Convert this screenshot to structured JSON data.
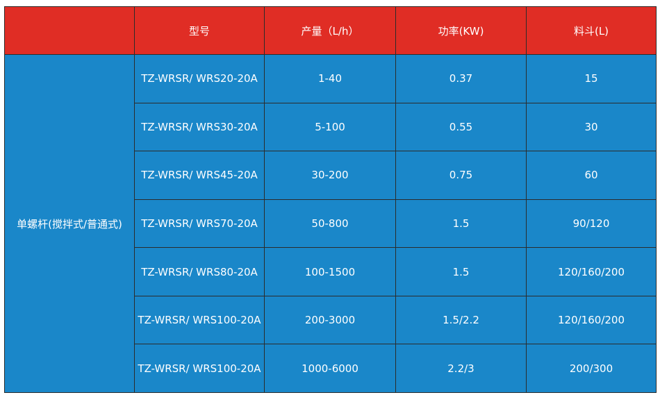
{
  "table": {
    "header": [
      "型号",
      "产量（L/h）",
      "功率(KW)",
      "料斗(L)"
    ],
    "group": "单螺杆(搅拌式/普通式)",
    "rows": [
      [
        "TZ-WRSR/ WRS20-20A",
        "1-40",
        "0.37",
        "15"
      ],
      [
        "TZ-WRSR/ WRS30-20A",
        "5-100",
        "0.55",
        "30"
      ],
      [
        "TZ-WRSR/ WRS45-20A",
        "30-200",
        "0.75",
        "60"
      ],
      [
        "TZ-WRSR/ WRS70-20A",
        "50-800",
        "1.5",
        "90/120"
      ],
      [
        "TZ-WRSR/ WRS80-20A",
        "100-1500",
        "1.5",
        "120/160/200"
      ],
      [
        "TZ-WRSR/ WRS100-20A",
        "200-3000",
        "1.5/2.2",
        "120/160/200"
      ],
      [
        "TZ-WRSR/ WRS100-20A",
        "1000-6000",
        "2.2/3",
        "200/300"
      ]
    ]
  }
}
